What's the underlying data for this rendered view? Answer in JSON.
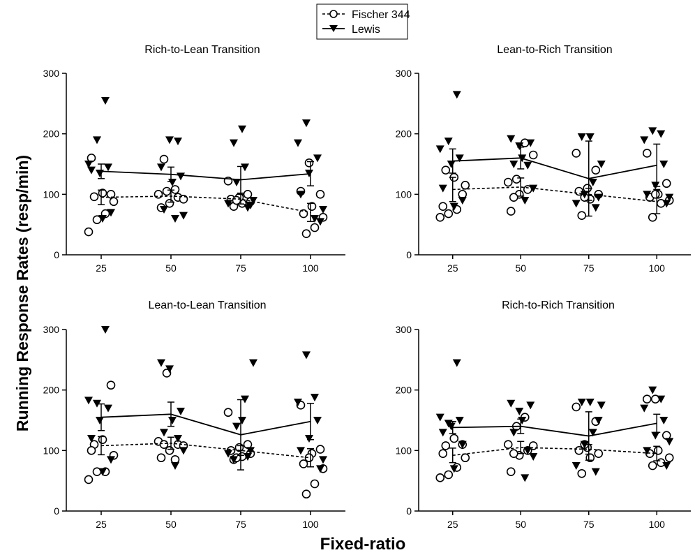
{
  "figure": {
    "ylabel": "Running Response Rates (resp/min)",
    "xlabel": "Fixed-ratio"
  },
  "legend": {
    "placement": "top-center",
    "entries": [
      {
        "label": "Fischer 344",
        "marker": "open-circle",
        "line": "dashed"
      },
      {
        "label": "Lewis",
        "marker": "filled-down-triangle",
        "line": "solid"
      }
    ]
  },
  "chart_data": [
    {
      "type": "scatter",
      "title": "Rich-to-Lean Transition",
      "x": [
        25,
        50,
        75,
        100
      ],
      "ylim": [
        0,
        300
      ],
      "yticks": [
        0,
        100,
        200,
        300
      ],
      "series": [
        {
          "name": "Fischer 344",
          "means": [
            95,
            97,
            92,
            70
          ],
          "sem": [
            12,
            10,
            8,
            15
          ],
          "points": [
            [
              38,
              58,
              68,
              88,
              96,
              102,
              100,
              160
            ],
            [
              78,
              85,
              95,
              100,
              105,
              108,
              92,
              158
            ],
            [
              80,
              85,
              88,
              92,
              95,
              100,
              122,
              90
            ],
            [
              35,
              45,
              62,
              68,
              80,
              100,
              105,
              152
            ]
          ]
        },
        {
          "name": "Lewis",
          "means": [
            138,
            133,
            124,
            134
          ],
          "sem": [
            12,
            12,
            22,
            20
          ],
          "points": [
            [
              60,
              70,
              140,
              135,
              145,
              150,
              190,
              255
            ],
            [
              60,
              65,
              75,
              120,
              130,
              145,
              190,
              188
            ],
            [
              78,
              85,
              120,
              145,
              90,
              185,
              208,
              82
            ],
            [
              55,
              100,
              135,
              160,
              185,
              218,
              60,
              75
            ]
          ]
        }
      ]
    },
    {
      "type": "scatter",
      "title": "Lean-to-Rich Transition",
      "x": [
        25,
        50,
        75,
        100
      ],
      "ylim": [
        0,
        300
      ],
      "yticks": [
        0,
        100,
        200,
        300
      ],
      "series": [
        {
          "name": "Fischer 344",
          "means": [
            108,
            112,
            100,
            88
          ],
          "sem": [
            20,
            15,
            10,
            20
          ],
          "points": [
            [
              62,
              68,
              75,
              115,
              140,
              128,
              100,
              80
            ],
            [
              72,
              100,
              108,
              120,
              125,
              185,
              165,
              95
            ],
            [
              65,
              92,
              100,
              105,
              110,
              140,
              168,
              95
            ],
            [
              62,
              85,
              90,
              95,
              100,
              118,
              168,
              100
            ]
          ]
        },
        {
          "name": "Lewis",
          "means": [
            155,
            160,
            126,
            148
          ],
          "sem": [
            20,
            18,
            62,
            35
          ],
          "points": [
            [
              80,
              90,
              110,
              150,
              160,
              175,
              188,
              265
            ],
            [
              90,
              110,
              150,
              160,
              185,
              192,
              180,
              148
            ],
            [
              78,
              85,
              100,
              120,
              150,
              195,
              195,
              95
            ],
            [
              85,
              100,
              115,
              150,
              190,
              205,
              200,
              95
            ]
          ]
        }
      ]
    },
    {
      "type": "scatter",
      "title": "Lean-to-Lean Transition",
      "x": [
        25,
        50,
        75,
        100
      ],
      "ylim": [
        0,
        300
      ],
      "yticks": [
        0,
        100,
        200,
        300
      ],
      "series": [
        {
          "name": "Fischer 344",
          "means": [
            108,
            112,
            100,
            88
          ],
          "sem": [
            15,
            10,
            8,
            15
          ],
          "points": [
            [
              52,
              65,
              65,
              92,
              110,
              118,
              208,
              100
            ],
            [
              88,
              100,
              110,
              115,
              228,
              85,
              108,
              110
            ],
            [
              85,
              90,
              95,
              100,
              105,
              110,
              163,
              88
            ],
            [
              28,
              45,
              70,
              78,
              95,
              102,
              175,
              88
            ]
          ]
        },
        {
          "name": "Lewis",
          "means": [
            155,
            160,
            126,
            148
          ],
          "sem": [
            22,
            20,
            58,
            30
          ],
          "points": [
            [
              65,
              85,
              120,
              150,
              170,
              183,
              178,
              300
            ],
            [
              75,
              100,
              130,
              150,
              165,
              245,
              235,
              120
            ],
            [
              90,
              95,
              140,
              185,
              245,
              85,
              150,
              100
            ],
            [
              70,
              100,
              120,
              150,
              180,
              258,
              188,
              85
            ]
          ]
        }
      ]
    },
    {
      "type": "scatter",
      "title": "Rich-to-Rich Transition",
      "x": [
        25,
        50,
        75,
        100
      ],
      "ylim": [
        0,
        300
      ],
      "yticks": [
        0,
        100,
        200,
        300
      ],
      "series": [
        {
          "name": "Fischer 344",
          "means": [
            92,
            105,
            102,
            95
          ],
          "sem": [
            12,
            10,
            8,
            12
          ],
          "points": [
            [
              55,
              60,
              72,
              88,
              108,
              120,
              110,
              95
            ],
            [
              65,
              92,
              100,
              110,
              140,
              155,
              108,
              95
            ],
            [
              62,
              88,
              95,
              100,
              105,
              148,
              172,
              110
            ],
            [
              75,
              80,
              88,
              95,
              100,
              125,
              185,
              185
            ]
          ]
        },
        {
          "name": "Lewis",
          "means": [
            138,
            140,
            124,
            145
          ],
          "sem": [
            10,
            12,
            40,
            15
          ],
          "points": [
            [
              70,
              110,
              130,
              140,
              150,
              155,
              145,
              245
            ],
            [
              55,
              90,
              130,
              150,
              175,
              178,
              165,
              100
            ],
            [
              65,
              75,
              110,
              130,
              175,
              180,
              180,
              150
            ],
            [
              75,
              100,
              125,
              150,
              170,
              200,
              185,
              115
            ]
          ]
        }
      ]
    }
  ]
}
